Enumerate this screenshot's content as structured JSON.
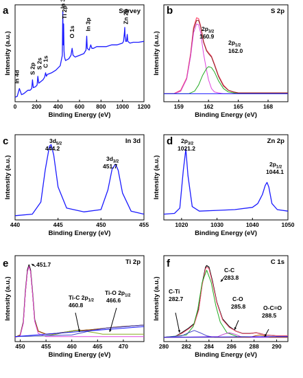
{
  "chart_data": [
    {
      "panel": "a",
      "type": "line",
      "title": "Survey",
      "xlabel": "Binding Energy (eV)",
      "ylabel": "Intensity (a.u.)",
      "xlim": [
        0,
        1200
      ],
      "xticks": [
        0,
        200,
        400,
        600,
        800,
        1000,
        1200
      ],
      "yticks": [],
      "series": [
        {
          "color": "#1a1aff",
          "x": [
            0,
            20,
            40,
            60,
            80,
            100,
            120,
            140,
            155,
            162,
            170,
            190,
            205,
            212,
            220,
            240,
            260,
            275,
            284,
            292,
            300,
            340,
            380,
            420,
            440,
            444,
            448,
            452,
            456,
            460,
            470,
            500,
            520,
            531,
            540,
            560,
            600,
            640,
            660,
            667,
            672,
            690,
            705,
            715,
            730,
            760,
            800,
            850,
            900,
            950,
            1000,
            1010,
            1018,
            1021,
            1024,
            1030,
            1038,
            1044,
            1050,
            1070,
            1100,
            1150,
            1200
          ],
          "y": [
            0.02,
            0.03,
            0.12,
            0.05,
            0.06,
            0.08,
            0.1,
            0.1,
            0.12,
            0.22,
            0.13,
            0.14,
            0.16,
            0.26,
            0.18,
            0.2,
            0.22,
            0.25,
            0.3,
            0.26,
            0.28,
            0.3,
            0.33,
            0.38,
            0.5,
            1.0,
            0.62,
            0.86,
            0.55,
            0.48,
            0.44,
            0.46,
            0.5,
            0.58,
            0.5,
            0.48,
            0.5,
            0.52,
            0.56,
            0.72,
            0.58,
            0.56,
            0.62,
            0.58,
            0.58,
            0.6,
            0.6,
            0.6,
            0.62,
            0.62,
            0.64,
            0.66,
            0.76,
            0.82,
            0.72,
            0.66,
            0.66,
            0.74,
            0.66,
            0.64,
            0.65,
            0.65,
            0.66
          ]
        }
      ],
      "annotations": [
        {
          "text": "In 4d",
          "x": 17,
          "y": 0.16
        },
        {
          "text": "S 2p",
          "x": 162,
          "y": 0.26
        },
        {
          "text": "S 2s",
          "x": 228,
          "y": 0.32
        },
        {
          "text": "C 1s",
          "x": 284,
          "y": 0.34
        },
        {
          "text": "In 3d",
          "x": 444,
          "y": 1.02
        },
        {
          "text": "Ti 2p",
          "x": 458,
          "y": 0.9
        },
        {
          "text": "O 1s",
          "x": 531,
          "y": 0.68
        },
        {
          "text": "In 3p",
          "x": 680,
          "y": 0.76
        },
        {
          "text": "Zn 2p",
          "x": 1030,
          "y": 0.84
        }
      ]
    },
    {
      "panel": "b",
      "type": "line",
      "title": "S 2p",
      "xlabel": "Binding Energy (eV)",
      "ylabel": "Intensity (a.u.)",
      "xlim": [
        157.5,
        170
      ],
      "xticks": [
        159,
        162,
        165,
        168
      ],
      "yticks": [],
      "series": [
        {
          "role": "raw",
          "color": "#ff5577",
          "x": [
            157.5,
            158.5,
            159.2,
            159.8,
            160.2,
            160.5,
            160.8,
            161.0,
            161.2,
            161.5,
            161.8,
            162.0,
            162.3,
            162.6,
            163.0,
            163.5,
            164.0,
            164.5,
            165,
            166,
            167,
            168,
            169,
            170
          ],
          "y": [
            0.06,
            0.06,
            0.1,
            0.24,
            0.52,
            0.82,
            0.93,
            0.92,
            0.84,
            0.66,
            0.56,
            0.53,
            0.49,
            0.4,
            0.27,
            0.16,
            0.1,
            0.08,
            0.07,
            0.07,
            0.07,
            0.07,
            0.07,
            0.07
          ]
        },
        {
          "role": "fit",
          "color": "#882222",
          "x": [
            157.5,
            158.5,
            159.2,
            159.8,
            160.2,
            160.5,
            160.8,
            161.0,
            161.2,
            161.5,
            161.8,
            162.0,
            162.3,
            162.6,
            163.0,
            163.5,
            164.0,
            164.5,
            165,
            166,
            167,
            168,
            169,
            170
          ],
          "y": [
            0.06,
            0.06,
            0.09,
            0.23,
            0.5,
            0.8,
            0.9,
            0.9,
            0.83,
            0.65,
            0.55,
            0.52,
            0.48,
            0.39,
            0.26,
            0.15,
            0.1,
            0.08,
            0.07,
            0.07,
            0.07,
            0.07,
            0.07,
            0.07
          ]
        },
        {
          "role": "S 2p3/2",
          "color": "#dd44dd",
          "x": [
            157.5,
            158.5,
            159.2,
            159.8,
            160.2,
            160.5,
            160.8,
            161.0,
            161.2,
            161.5,
            161.8,
            162.0,
            162.3,
            162.6,
            163.0,
            163.5,
            164.0,
            165,
            170
          ],
          "y": [
            0.06,
            0.06,
            0.09,
            0.23,
            0.49,
            0.76,
            0.86,
            0.85,
            0.76,
            0.52,
            0.33,
            0.22,
            0.12,
            0.08,
            0.07,
            0.06,
            0.06,
            0.06,
            0.06
          ]
        },
        {
          "role": "S 2p1/2",
          "color": "#22aa22",
          "x": [
            157.5,
            160.0,
            160.6,
            161.0,
            161.4,
            161.8,
            162.0,
            162.3,
            162.6,
            163.0,
            163.5,
            164.0,
            165,
            170
          ],
          "y": [
            0.06,
            0.06,
            0.09,
            0.16,
            0.27,
            0.35,
            0.37,
            0.36,
            0.31,
            0.21,
            0.12,
            0.08,
            0.06,
            0.06
          ]
        },
        {
          "role": "background",
          "color": "#1a1aff",
          "x": [
            157.5,
            170
          ],
          "y": [
            0.06,
            0.06
          ]
        }
      ],
      "annotations": [
        {
          "main": "2p",
          "sub": "3/2",
          "value": "160.9"
        },
        {
          "main": "2p",
          "sub": "1/2",
          "value": "162.0"
        }
      ]
    },
    {
      "panel": "c",
      "type": "line",
      "title": "In 3d",
      "xlabel": "Binding Energy (eV)",
      "ylabel": "Intensity (a.u.)",
      "xlim": [
        440,
        455
      ],
      "xticks": [
        440,
        445,
        450,
        455
      ],
      "yticks": [],
      "series": [
        {
          "color": "#1a1aff",
          "x": [
            440,
            442,
            443,
            443.5,
            444.0,
            444.2,
            444.5,
            445,
            446,
            448,
            450,
            450.8,
            451.3,
            451.7,
            452.0,
            452.5,
            453.5,
            455
          ],
          "y": [
            0.02,
            0.04,
            0.2,
            0.62,
            0.94,
            0.96,
            0.82,
            0.4,
            0.12,
            0.07,
            0.1,
            0.36,
            0.64,
            0.7,
            0.62,
            0.32,
            0.08,
            0.04
          ]
        }
      ],
      "annotations": [
        {
          "main": "3d",
          "sub": "5/2",
          "value": "444.2"
        },
        {
          "main": "3d",
          "sub": "3/2",
          "value": "451.7"
        }
      ]
    },
    {
      "panel": "d",
      "type": "line",
      "title": "Zn 2p",
      "xlabel": "Binding Energy (eV)",
      "ylabel": "Intensity (a.u.)",
      "xlim": [
        1015,
        1050
      ],
      "xticks": [
        1020,
        1030,
        1040,
        1050
      ],
      "yticks": [],
      "series": [
        {
          "color": "#1a1aff",
          "x": [
            1015,
            1018,
            1019.5,
            1020.5,
            1021.2,
            1021.8,
            1023,
            1025,
            1030,
            1035,
            1040,
            1041.5,
            1042.8,
            1043.6,
            1044.1,
            1044.6,
            1045.5,
            1047,
            1050
          ],
          "y": [
            0.04,
            0.05,
            0.12,
            0.62,
            0.9,
            0.55,
            0.14,
            0.08,
            0.09,
            0.1,
            0.13,
            0.18,
            0.3,
            0.42,
            0.46,
            0.4,
            0.18,
            0.1,
            0.08
          ]
        }
      ],
      "annotations": [
        {
          "main": "2p",
          "sub": "3/2",
          "value": "1021.2"
        },
        {
          "main": "2p",
          "sub": "1/2",
          "value": "1044.1"
        }
      ]
    },
    {
      "panel": "e",
      "type": "line",
      "title": "Ti 2p",
      "xlabel": "Binding Energy (eV)",
      "ylabel": "Intensity (a.u.)",
      "xlim": [
        449,
        474
      ],
      "xticks": [
        450,
        455,
        460,
        465,
        470
      ],
      "yticks": [],
      "series": [
        {
          "role": "raw",
          "color": "#111111",
          "x": [
            449,
            450,
            450.6,
            451.0,
            451.4,
            451.7,
            452.0,
            452.4,
            452.8,
            453.5,
            455,
            457,
            459,
            460.8,
            462,
            464,
            466.6,
            468,
            470,
            472,
            474
          ],
          "y": [
            0.02,
            0.05,
            0.22,
            0.62,
            0.9,
            0.97,
            0.9,
            0.6,
            0.25,
            0.1,
            0.06,
            0.07,
            0.09,
            0.11,
            0.11,
            0.12,
            0.14,
            0.15,
            0.16,
            0.17,
            0.18
          ]
        },
        {
          "role": "fit",
          "color": "#bb5500",
          "x": [
            449,
            450,
            450.6,
            451.0,
            451.4,
            451.7,
            452.0,
            452.4,
            452.8,
            453.5,
            455,
            457,
            459,
            460.8,
            462,
            464,
            466.6,
            468,
            470,
            472,
            474
          ],
          "y": [
            0.02,
            0.05,
            0.21,
            0.6,
            0.88,
            0.95,
            0.88,
            0.58,
            0.24,
            0.1,
            0.06,
            0.07,
            0.09,
            0.11,
            0.11,
            0.12,
            0.14,
            0.15,
            0.16,
            0.17,
            0.18
          ]
        },
        {
          "role": "Ti peak 451.7",
          "color": "#dd44dd",
          "x": [
            449,
            450,
            450.6,
            451.0,
            451.4,
            451.7,
            452.0,
            452.4,
            452.8,
            453.5,
            455,
            474
          ],
          "y": [
            0.02,
            0.04,
            0.2,
            0.6,
            0.88,
            0.95,
            0.88,
            0.58,
            0.23,
            0.07,
            0.03,
            0.03
          ]
        },
        {
          "role": "Ti-C 2p1/2",
          "color": "#88aa22",
          "x": [
            449,
            455,
            457,
            459,
            460.8,
            462.5,
            464.5,
            466,
            474
          ],
          "y": [
            0.03,
            0.04,
            0.06,
            0.09,
            0.11,
            0.1,
            0.08,
            0.06,
            0.06
          ]
        },
        {
          "role": "Ti-O 2p1/2",
          "color": "#4444cc",
          "x": [
            449,
            460,
            462,
            464,
            466.6,
            468.5,
            470.5,
            472,
            474
          ],
          "y": [
            0.03,
            0.05,
            0.08,
            0.11,
            0.14,
            0.15,
            0.16,
            0.17,
            0.18
          ]
        },
        {
          "role": "background",
          "color": "#1a1aff",
          "x": [
            449,
            474
          ],
          "y": [
            0.03,
            0.16
          ]
        }
      ],
      "annotations": [
        {
          "text": "451.7"
        },
        {
          "main": "Ti-C 2p",
          "sub": "1/2",
          "value": "460.8"
        },
        {
          "main": "Ti-O 2p",
          "sub": "1/2",
          "value": "466.6"
        }
      ]
    },
    {
      "panel": "f",
      "type": "line",
      "title": "C 1s",
      "xlabel": "Binding Energy (eV)",
      "ylabel": "Intensity (a.u.)",
      "xlim": [
        280,
        291
      ],
      "xticks": [
        280,
        282,
        284,
        286,
        288,
        290
      ],
      "yticks": [],
      "series": [
        {
          "role": "raw",
          "color": "#111111",
          "x": [
            280,
            281,
            281.6,
            282.2,
            282.7,
            283.1,
            283.4,
            283.7,
            283.8,
            284.0,
            284.3,
            284.7,
            285.2,
            285.8,
            286.4,
            287,
            287.6,
            288.2,
            288.5,
            289,
            290,
            291
          ],
          "y": [
            0.02,
            0.03,
            0.08,
            0.14,
            0.2,
            0.4,
            0.72,
            0.94,
            0.96,
            0.94,
            0.76,
            0.48,
            0.26,
            0.16,
            0.1,
            0.07,
            0.07,
            0.08,
            0.07,
            0.05,
            0.04,
            0.04
          ]
        },
        {
          "role": "fit",
          "color": "#ff5577",
          "x": [
            280,
            281,
            281.6,
            282.2,
            282.7,
            283.1,
            283.4,
            283.7,
            283.8,
            284.0,
            284.3,
            284.7,
            285.2,
            285.8,
            286.4,
            287,
            287.6,
            288.2,
            288.5,
            289,
            290,
            291
          ],
          "y": [
            0.02,
            0.03,
            0.07,
            0.13,
            0.19,
            0.38,
            0.7,
            0.92,
            0.94,
            0.92,
            0.74,
            0.47,
            0.25,
            0.15,
            0.1,
            0.07,
            0.07,
            0.08,
            0.07,
            0.05,
            0.04,
            0.04
          ]
        },
        {
          "role": "C-C",
          "color": "#22aa22",
          "x": [
            280,
            282.0,
            282.6,
            283.0,
            283.4,
            283.8,
            284.2,
            284.6,
            285.0,
            285.6,
            286.5,
            291
          ],
          "y": [
            0.02,
            0.05,
            0.16,
            0.38,
            0.74,
            0.9,
            0.74,
            0.44,
            0.22,
            0.08,
            0.03,
            0.02
          ]
        },
        {
          "role": "C-Ti",
          "color": "#4444cc",
          "x": [
            280,
            281.6,
            282.2,
            282.7,
            283.2,
            283.8,
            284.5,
            291
          ],
          "y": [
            0.02,
            0.04,
            0.08,
            0.11,
            0.08,
            0.04,
            0.02,
            0.02
          ]
        },
        {
          "role": "C-O",
          "color": "#bb44cc",
          "x": [
            280,
            284.8,
            285.3,
            285.8,
            286.3,
            286.8,
            287.3,
            291
          ],
          "y": [
            0.02,
            0.03,
            0.06,
            0.08,
            0.06,
            0.03,
            0.02,
            0.02
          ]
        },
        {
          "role": "O-C=O",
          "color": "#bb5500",
          "x": [
            280,
            287.6,
            288.1,
            288.5,
            288.9,
            289.4,
            291
          ],
          "y": [
            0.02,
            0.02,
            0.04,
            0.05,
            0.04,
            0.02,
            0.02
          ]
        },
        {
          "role": "background",
          "color": "#1a1aff",
          "x": [
            280,
            291
          ],
          "y": [
            0.02,
            0.03
          ]
        }
      ],
      "annotations": [
        {
          "text": "C-C",
          "value": "283.8"
        },
        {
          "text": "C-Ti",
          "value": "282.7"
        },
        {
          "text": "C-O",
          "value": "285.8"
        },
        {
          "text": "O-C=O",
          "value": "288.5"
        }
      ]
    }
  ]
}
